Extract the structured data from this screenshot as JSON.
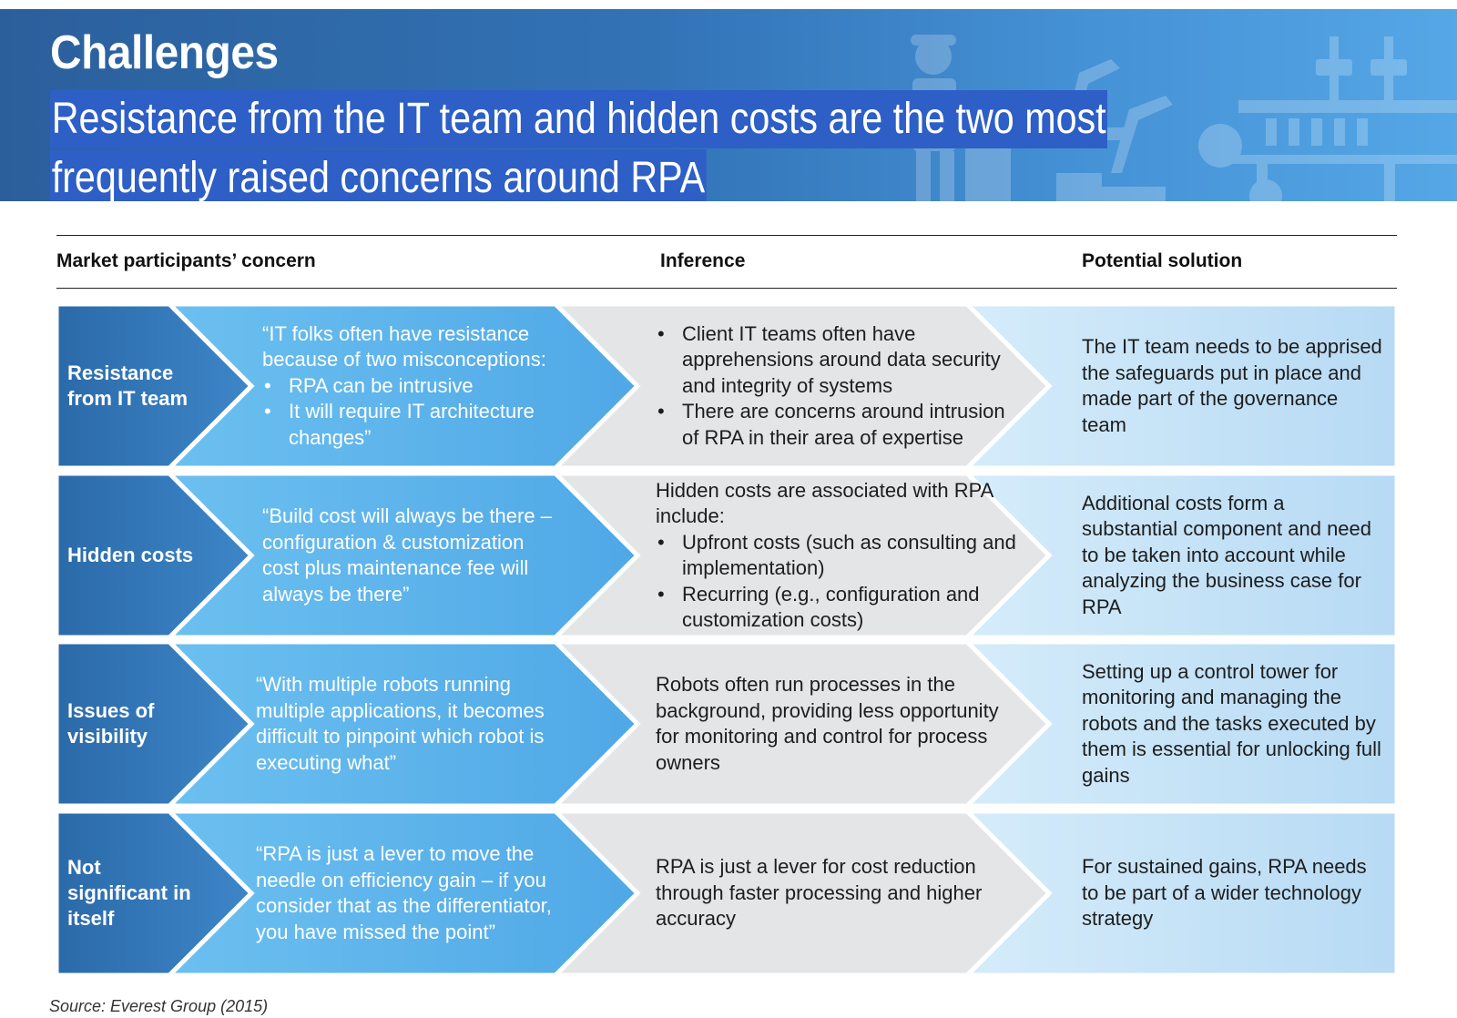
{
  "header": {
    "title": "Challenges",
    "subtitle_line1": "Resistance from the IT team and hidden costs are the two most",
    "subtitle_line2": "frequently raised concerns around RPA"
  },
  "columns": {
    "concern": "Market participants’ concern",
    "inference": "Inference",
    "solution": "Potential solution"
  },
  "rows": [
    {
      "label": "Resistance from IT team",
      "quote_intro": "“IT folks often have resistance because of two misconceptions:",
      "quote_bullets": [
        "RPA can be intrusive",
        "It will require IT architecture changes”"
      ],
      "inference_intro": "",
      "inference_bullets": [
        "Client IT teams often have apprehensions around data security and integrity of systems",
        "There are concerns around intrusion of RPA in their area of expertise"
      ],
      "solution": "The IT team needs to be apprised the safeguards put in place and made part of the governance team"
    },
    {
      "label": "Hidden costs",
      "quote_intro": "“Build cost will always be there – configuration & customization cost plus maintenance fee will always be there”",
      "quote_bullets": [],
      "inference_intro": "Hidden costs are associated with RPA include:",
      "inference_bullets": [
        "Upfront costs (such as consulting and implementation)",
        "Recurring (e.g., configuration and customization costs)"
      ],
      "solution": "Additional costs form a substantial component and need to be taken into account while analyzing the business case for RPA"
    },
    {
      "label": "Issues of visibility",
      "quote_intro": "“With multiple robots running multiple applications, it becomes difficult to pinpoint which robot is executing what”",
      "quote_bullets": [],
      "inference_intro": "Robots often run processes in the background, providing less opportunity for monitoring and control for process owners",
      "inference_bullets": [],
      "solution": "Setting up a control tower for monitoring and managing the robots and the tasks executed by them is essential for unlocking full gains"
    },
    {
      "label": "Not significant in itself",
      "quote_intro": "“RPA is just a lever to move the needle on efficiency gain – if you consider that as the differentiator, you have missed the point”",
      "quote_bullets": [],
      "inference_intro": "RPA is just a lever for cost reduction through faster processing and higher accuracy",
      "inference_bullets": [],
      "solution": "For sustained gains, RPA needs to be part of a wider technology strategy"
    }
  ],
  "source": "Source: Everest Group (2015)",
  "colors": {
    "label_dark": "#2c66a6",
    "quote_blue": "#4fa8e6",
    "inference_gray": "#e4e5e7",
    "solution_light": "#c4e1f6",
    "subtitle_highlight": "#2e5fc6"
  }
}
